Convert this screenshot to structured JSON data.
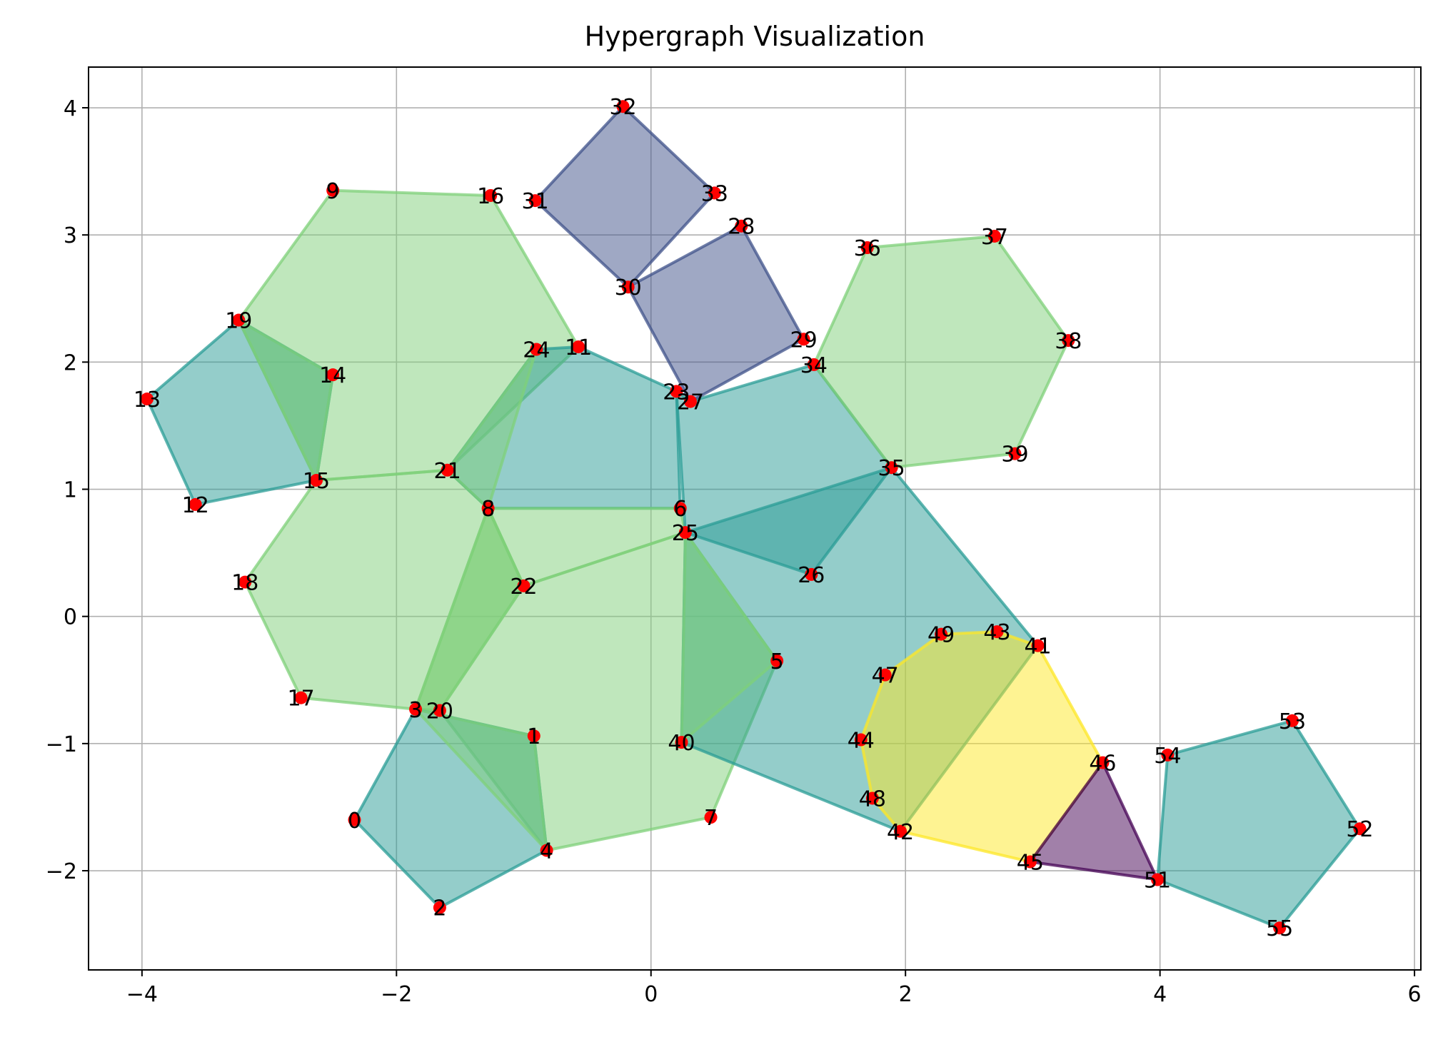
{
  "chart_data": {
    "type": "scatter",
    "title": "Hypergraph Visualization",
    "xlabel": "",
    "ylabel": "",
    "xlim": [
      -4.42,
      6.05
    ],
    "ylim": [
      -2.78,
      4.32
    ],
    "xticks": [
      -4,
      -2,
      0,
      2,
      4,
      6
    ],
    "xtick_labels": [
      "−4",
      "−2",
      "0",
      "2",
      "4",
      "6"
    ],
    "yticks": [
      -2,
      -1,
      0,
      1,
      2,
      3,
      4
    ],
    "ytick_labels": [
      "−2",
      "−1",
      "0",
      "1",
      "2",
      "3",
      "4"
    ],
    "grid": true,
    "node_color": "#ff0000",
    "nodes": [
      {
        "id": "0",
        "x": -2.33,
        "y": -1.6
      },
      {
        "id": "1",
        "x": -0.92,
        "y": -0.94
      },
      {
        "id": "2",
        "x": -1.66,
        "y": -2.29
      },
      {
        "id": "3",
        "x": -1.85,
        "y": -0.73
      },
      {
        "id": "4",
        "x": -0.82,
        "y": -1.84
      },
      {
        "id": "5",
        "x": 0.99,
        "y": -0.35
      },
      {
        "id": "6",
        "x": 0.23,
        "y": 0.85
      },
      {
        "id": "7",
        "x": 0.47,
        "y": -1.58
      },
      {
        "id": "8",
        "x": -1.28,
        "y": 0.85
      },
      {
        "id": "9",
        "x": -2.5,
        "y": 3.35
      },
      {
        "id": "11",
        "x": -0.57,
        "y": 2.12
      },
      {
        "id": "12",
        "x": -3.58,
        "y": 0.88
      },
      {
        "id": "13",
        "x": -3.96,
        "y": 1.71
      },
      {
        "id": "14",
        "x": -2.5,
        "y": 1.9
      },
      {
        "id": "15",
        "x": -2.63,
        "y": 1.07
      },
      {
        "id": "16",
        "x": -1.26,
        "y": 3.31
      },
      {
        "id": "17",
        "x": -2.75,
        "y": -0.64
      },
      {
        "id": "18",
        "x": -3.19,
        "y": 0.27
      },
      {
        "id": "19",
        "x": -3.24,
        "y": 2.33
      },
      {
        "id": "20",
        "x": -1.66,
        "y": -0.74
      },
      {
        "id": "21",
        "x": -1.6,
        "y": 1.15
      },
      {
        "id": "22",
        "x": -1.0,
        "y": 0.24
      },
      {
        "id": "23",
        "x": 0.2,
        "y": 1.77
      },
      {
        "id": "24",
        "x": -0.9,
        "y": 2.1
      },
      {
        "id": "25",
        "x": 0.27,
        "y": 0.66
      },
      {
        "id": "26",
        "x": 1.26,
        "y": 0.33
      },
      {
        "id": "27",
        "x": 0.31,
        "y": 1.69
      },
      {
        "id": "28",
        "x": 0.71,
        "y": 3.07
      },
      {
        "id": "29",
        "x": 1.2,
        "y": 2.18
      },
      {
        "id": "30",
        "x": -0.18,
        "y": 2.59
      },
      {
        "id": "31",
        "x": -0.91,
        "y": 3.27
      },
      {
        "id": "32",
        "x": -0.22,
        "y": 4.01
      },
      {
        "id": "33",
        "x": 0.5,
        "y": 3.33
      },
      {
        "id": "34",
        "x": 1.28,
        "y": 1.98
      },
      {
        "id": "35",
        "x": 1.89,
        "y": 1.17
      },
      {
        "id": "36",
        "x": 1.7,
        "y": 2.9
      },
      {
        "id": "37",
        "x": 2.7,
        "y": 2.99
      },
      {
        "id": "38",
        "x": 3.28,
        "y": 2.17
      },
      {
        "id": "39",
        "x": 2.86,
        "y": 1.28
      },
      {
        "id": "40",
        "x": 0.24,
        "y": -0.99
      },
      {
        "id": "41",
        "x": 3.04,
        "y": -0.23
      },
      {
        "id": "42",
        "x": 1.96,
        "y": -1.69
      },
      {
        "id": "43",
        "x": 2.72,
        "y": -0.12
      },
      {
        "id": "44",
        "x": 1.65,
        "y": -0.97
      },
      {
        "id": "45",
        "x": 2.98,
        "y": -1.93
      },
      {
        "id": "46",
        "x": 3.55,
        "y": -1.15
      },
      {
        "id": "47",
        "x": 1.84,
        "y": -0.46
      },
      {
        "id": "48",
        "x": 1.74,
        "y": -1.43
      },
      {
        "id": "49",
        "x": 2.28,
        "y": -0.14
      },
      {
        "id": "51",
        "x": 3.98,
        "y": -2.07
      },
      {
        "id": "52",
        "x": 5.57,
        "y": -1.67
      },
      {
        "id": "53",
        "x": 5.04,
        "y": -0.82
      },
      {
        "id": "54",
        "x": 4.06,
        "y": -1.09
      },
      {
        "id": "55",
        "x": 4.94,
        "y": -2.45
      }
    ],
    "hyperedges": [
      {
        "color": "#7fd07a",
        "nodes": [
          "9",
          "16",
          "11",
          "21",
          "15",
          "19"
        ]
      },
      {
        "color": "#2a9c96",
        "nodes": [
          "13",
          "19",
          "14",
          "15",
          "12"
        ]
      },
      {
        "color": "#7fd07a",
        "nodes": [
          "19",
          "14",
          "15"
        ]
      },
      {
        "color": "#7fd07a",
        "nodes": [
          "15",
          "21",
          "8",
          "22",
          "20",
          "3",
          "17",
          "18"
        ]
      },
      {
        "color": "#2a9c96",
        "nodes": [
          "24",
          "11",
          "23",
          "6",
          "8",
          "21"
        ]
      },
      {
        "color": "#7fd07a",
        "nodes": [
          "24",
          "21",
          "8"
        ]
      },
      {
        "color": "#7fd07a",
        "nodes": [
          "8",
          "6",
          "25",
          "22"
        ]
      },
      {
        "color": "#7fd07a",
        "nodes": [
          "22",
          "25",
          "5",
          "7",
          "4",
          "20",
          "3",
          "8"
        ]
      },
      {
        "color": "#7fd07a",
        "nodes": [
          "8",
          "22",
          "20",
          "3"
        ]
      },
      {
        "color": "#2a9c96",
        "nodes": [
          "0",
          "3",
          "1",
          "4",
          "2"
        ]
      },
      {
        "color": "#7fd07a",
        "nodes": [
          "3",
          "1",
          "4"
        ]
      },
      {
        "color": "#2a9c96",
        "nodes": [
          "27",
          "34",
          "35",
          "41",
          "42",
          "40",
          "25",
          "23"
        ]
      },
      {
        "color": "#7fd07a",
        "nodes": [
          "25",
          "5",
          "40"
        ]
      },
      {
        "color": "#2a9c96",
        "nodes": [
          "25",
          "35",
          "26"
        ]
      },
      {
        "color": "#3f528a",
        "nodes": [
          "31",
          "32",
          "33",
          "30"
        ]
      },
      {
        "color": "#3f528a",
        "nodes": [
          "30",
          "28",
          "29",
          "27"
        ]
      },
      {
        "color": "#7fd07a",
        "nodes": [
          "36",
          "37",
          "38",
          "39",
          "35",
          "34"
        ]
      },
      {
        "color": "#fde725",
        "nodes": [
          "49",
          "43",
          "41",
          "46",
          "45",
          "42",
          "48",
          "44",
          "47"
        ]
      },
      {
        "color": "#440154",
        "nodes": [
          "46",
          "51",
          "45"
        ]
      },
      {
        "color": "#2a9c96",
        "nodes": [
          "54",
          "53",
          "52",
          "55",
          "51"
        ]
      }
    ]
  }
}
